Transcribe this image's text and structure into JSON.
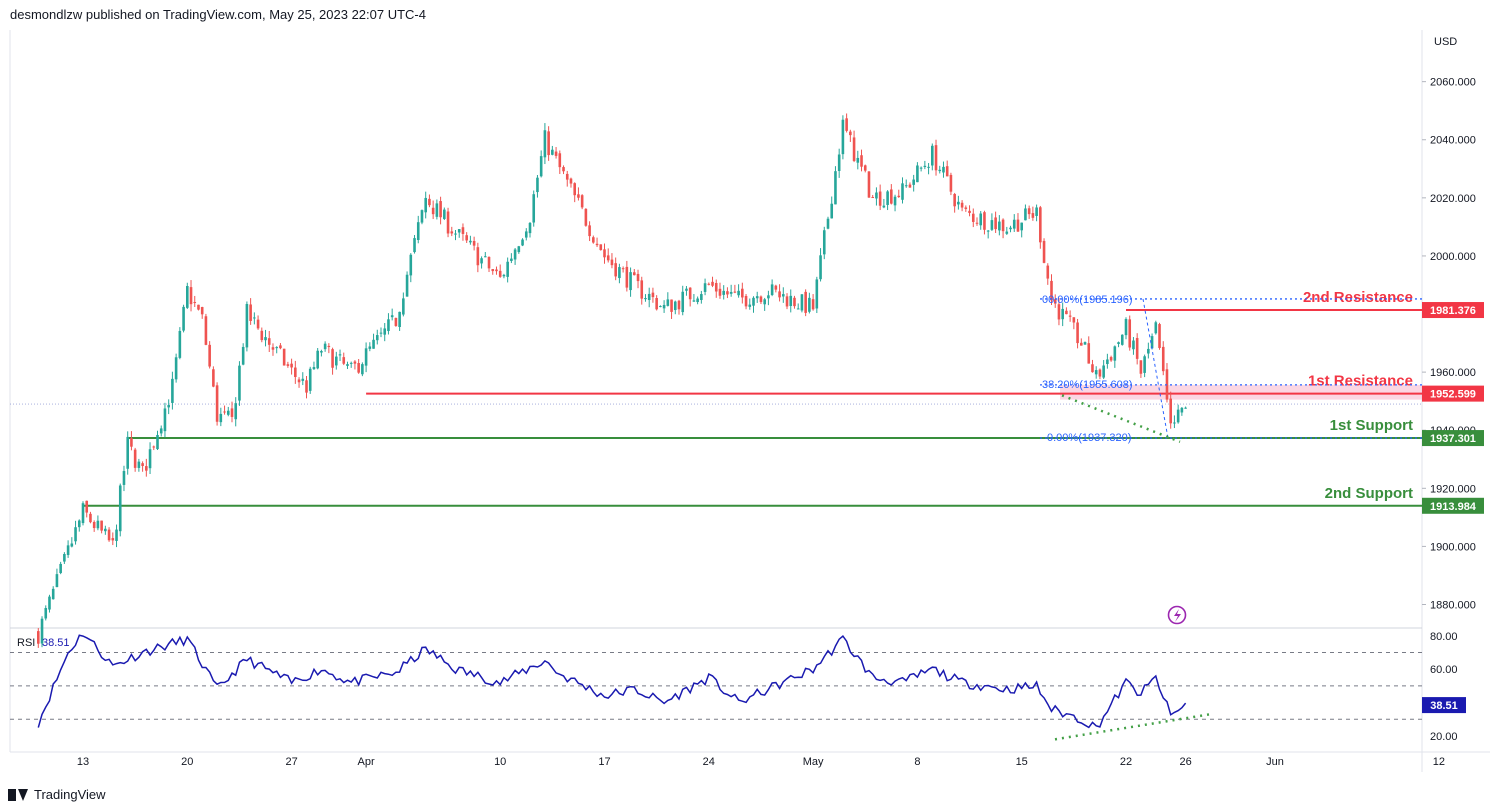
{
  "header": {
    "publisher": "desmondlzw published on TradingView.com, May 25, 2023 22:07 UTC-4"
  },
  "footer": {
    "brand": "TradingView"
  },
  "colors": {
    "up": "#26a69a",
    "down": "#ef5350",
    "resistance": "#f23645",
    "support": "#388e3c",
    "rsi": "#1a1ab0",
    "fib": "#2962ff",
    "flash": "#9c27b0"
  },
  "icons": {
    "flash": "lightning-icon",
    "logo": "tradingview-logo-icon"
  },
  "chart_data": {
    "type": "candlestick",
    "currency": "USD",
    "ylim": [
      1872,
      2072
    ],
    "y_ticks": [
      "2060.000",
      "2040.000",
      "2020.000",
      "2000.000",
      "1980.000",
      "1960.000",
      "1940.000",
      "1920.000",
      "1900.000",
      "1880.000"
    ],
    "x_ticks": [
      "13",
      "20",
      "27",
      "Apr",
      "10",
      "17",
      "24",
      "May",
      "8",
      "15",
      "22",
      "26",
      "Jun",
      "12"
    ],
    "current_price": 1949,
    "anchors": [
      {
        "date": "Mar 10",
        "close": 1870
      },
      {
        "date": "Mar 13",
        "close": 1912
      },
      {
        "date": "Mar 15",
        "close": 1900
      },
      {
        "date": "Mar 16",
        "close": 1935
      },
      {
        "date": "Mar 17",
        "close": 1925
      },
      {
        "date": "Mar 19",
        "close": 1955
      },
      {
        "date": "Mar 20",
        "close": 1988
      },
      {
        "date": "Mar 21",
        "close": 1978
      },
      {
        "date": "Mar 22",
        "close": 1945
      },
      {
        "date": "Mar 23",
        "close": 1943
      },
      {
        "date": "Mar 24",
        "close": 1980
      },
      {
        "date": "Mar 27",
        "close": 1960
      },
      {
        "date": "Mar 28",
        "close": 1955
      },
      {
        "date": "Mar 29",
        "close": 1968
      },
      {
        "date": "Mar 31",
        "close": 1960
      },
      {
        "date": "Apr 3",
        "close": 1978
      },
      {
        "date": "Apr 5",
        "close": 2020
      },
      {
        "date": "Apr 7",
        "close": 2008
      },
      {
        "date": "Apr 10",
        "close": 1992
      },
      {
        "date": "Apr 12",
        "close": 2014
      },
      {
        "date": "Apr 13",
        "close": 2040
      },
      {
        "date": "Apr 17",
        "close": 2000
      },
      {
        "date": "Apr 19",
        "close": 1990
      },
      {
        "date": "Apr 21",
        "close": 1982
      },
      {
        "date": "Apr 24",
        "close": 1990
      },
      {
        "date": "Apr 26",
        "close": 1985
      },
      {
        "date": "Apr 28",
        "close": 1988
      },
      {
        "date": "May 1",
        "close": 1982
      },
      {
        "date": "May 3",
        "close": 2045
      },
      {
        "date": "May 5",
        "close": 2020
      },
      {
        "date": "May 7",
        "close": 2022
      },
      {
        "date": "May 9",
        "close": 2035
      },
      {
        "date": "May 11",
        "close": 2015
      },
      {
        "date": "May 14",
        "close": 2010
      },
      {
        "date": "May 16",
        "close": 2015
      },
      {
        "date": "May 17",
        "close": 1985
      },
      {
        "date": "May 19",
        "close": 1970
      },
      {
        "date": "May 20",
        "close": 1958
      },
      {
        "date": "May 22",
        "close": 1975
      },
      {
        "date": "May 23",
        "close": 1960
      },
      {
        "date": "May 24",
        "close": 1975
      },
      {
        "date": "May 25",
        "close": 1940
      },
      {
        "date": "May 26",
        "close": 1949
      }
    ],
    "levels": [
      {
        "label": "2nd Resistance",
        "value": 1981.376,
        "value_text": "1981.376",
        "kind": "resistance"
      },
      {
        "label": "1st Resistance",
        "value": 1952.599,
        "value_text": "1952.599",
        "kind": "resistance"
      },
      {
        "label": "1st Support",
        "value": 1937.301,
        "value_text": "1937.301",
        "kind": "support"
      },
      {
        "label": "2nd Support",
        "value": 1913.984,
        "value_text": "1913.984",
        "kind": "support"
      }
    ],
    "fibonacci": [
      {
        "label": "00.00%(1985.196)",
        "value": 1985.196
      },
      {
        "label": "38.20%(1955.608)",
        "value": 1955.608
      },
      {
        "label": "0.00%(1937.320)",
        "value": 1937.32
      }
    ],
    "rsi": {
      "label": "RSI",
      "value_text": "38.51",
      "value": 38.51,
      "ylim": [
        15,
        85
      ],
      "y_ticks": [
        "80.00",
        "60.00",
        "40.00",
        "20.00"
      ],
      "levels": [
        70,
        50,
        30
      ],
      "anchors": [
        {
          "date": "Mar 10",
          "value": 28
        },
        {
          "date": "Mar 12",
          "value": 70
        },
        {
          "date": "Mar 13",
          "value": 82
        },
        {
          "date": "Mar 15",
          "value": 62
        },
        {
          "date": "Mar 17",
          "value": 70
        },
        {
          "date": "Mar 20",
          "value": 78
        },
        {
          "date": "Mar 22",
          "value": 48
        },
        {
          "date": "Mar 24",
          "value": 66
        },
        {
          "date": "Mar 27",
          "value": 52
        },
        {
          "date": "Mar 29",
          "value": 60
        },
        {
          "date": "Mar 31",
          "value": 52
        },
        {
          "date": "Apr 3",
          "value": 58
        },
        {
          "date": "Apr 5",
          "value": 72
        },
        {
          "date": "Apr 7",
          "value": 60
        },
        {
          "date": "Apr 10",
          "value": 52
        },
        {
          "date": "Apr 13",
          "value": 65
        },
        {
          "date": "Apr 14",
          "value": 57
        },
        {
          "date": "Apr 17",
          "value": 44
        },
        {
          "date": "Apr 19",
          "value": 48
        },
        {
          "date": "Apr 21",
          "value": 40
        },
        {
          "date": "Apr 24",
          "value": 55
        },
        {
          "date": "Apr 26",
          "value": 40
        },
        {
          "date": "Apr 28",
          "value": 48
        },
        {
          "date": "May 1",
          "value": 60
        },
        {
          "date": "May 3",
          "value": 78
        },
        {
          "date": "May 5",
          "value": 55
        },
        {
          "date": "May 7",
          "value": 52
        },
        {
          "date": "May 9",
          "value": 60
        },
        {
          "date": "May 11",
          "value": 52
        },
        {
          "date": "May 14",
          "value": 48
        },
        {
          "date": "May 16",
          "value": 50
        },
        {
          "date": "May 17",
          "value": 36
        },
        {
          "date": "May 19",
          "value": 30
        },
        {
          "date": "May 20",
          "value": 25
        },
        {
          "date": "May 22",
          "value": 52
        },
        {
          "date": "May 23",
          "value": 45
        },
        {
          "date": "May 24",
          "value": 55
        },
        {
          "date": "May 25",
          "value": 32
        },
        {
          "date": "May 26",
          "value": 38.51
        }
      ]
    }
  }
}
